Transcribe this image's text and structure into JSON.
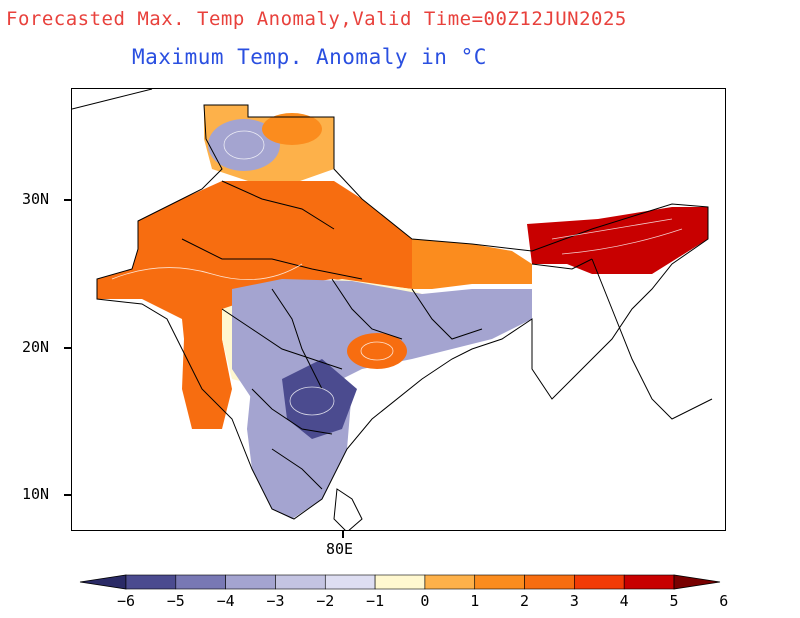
{
  "header": {
    "title": "Forecasted Max. Temp Anomaly,Valid Time=00Z12JUN2025",
    "subtitle": "Maximum Temp. Anomaly in °C"
  },
  "axes": {
    "lat_labels": [
      "30N",
      "20N",
      "10N"
    ],
    "lon_labels": [
      "80E"
    ]
  },
  "colorbar": {
    "labels": [
      "−6",
      "−5",
      "−4",
      "−3",
      "−2",
      "−1",
      "0",
      "1",
      "2",
      "3",
      "4",
      "5",
      "6"
    ],
    "colors": [
      "#2a2a66",
      "#4b4b8f",
      "#7878b4",
      "#a4a4d0",
      "#c4c4e2",
      "#dedef2",
      "#fff8d0",
      "#fdb14a",
      "#fb8c1e",
      "#f76d10",
      "#f23b06",
      "#c80000",
      "#780000"
    ]
  },
  "map_colors": {
    "strong_warm": "#c80000",
    "warm": "#f76d10",
    "mild_warm": "#fb8c1e",
    "light_warm": "#fdb14a",
    "neutral": "#fff8d0",
    "light_cool": "#dedef2",
    "cool": "#a4a4d0",
    "strong_cool": "#4b4b8f",
    "deep_cool": "#2a2a66"
  }
}
